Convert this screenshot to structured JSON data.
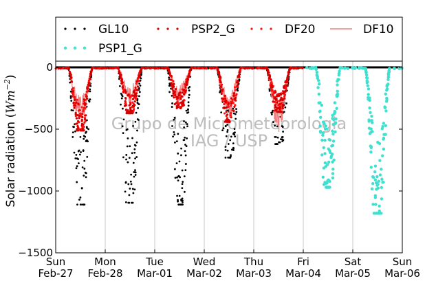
{
  "chart_data": {
    "type": "scatter",
    "title": "",
    "xlabel": "",
    "ylabel": "Solar radiation (Wm^-2)",
    "ylabel_parts": {
      "main": "Solar radiation (",
      "unit": "Wm",
      "sup": "−2",
      "close": ")"
    },
    "ylim": [
      -1500,
      50
    ],
    "yticks": [
      0,
      -500,
      -1000,
      -1500
    ],
    "ytick_labels": [
      "0",
      "−500",
      "−1000",
      "−1500"
    ],
    "xlim": [
      "2011-02-27",
      "2011-03-06"
    ],
    "xtick_days": [
      "Sun",
      "Mon",
      "Tue",
      "Wed",
      "Thu",
      "Fri",
      "Sat",
      "Sun"
    ],
    "xtick_dates": [
      "Feb-27",
      "Feb-28",
      "Mar-01",
      "Mar-02",
      "Mar-03",
      "Mar-04",
      "Mar-05",
      "Mar-06"
    ],
    "grid": "vertical",
    "legend_position": "top",
    "watermark_lines": [
      "Grupo de Micrometeorologia",
      "IAG / USP"
    ],
    "colors": {
      "GL10": "#000000",
      "PSP2_G": "#d40000",
      "DF20": "#ff1010",
      "DF10": "#f08080",
      "PSP1_G": "#40e0d0"
    },
    "series": [
      {
        "name": "GL10",
        "style": "dots",
        "days": [
          "Feb-27",
          "Feb-28",
          "Mar-01",
          "Mar-02",
          "Mar-03"
        ],
        "daily_min": [
          -1110,
          -1095,
          -1110,
          -730,
          -620
        ]
      },
      {
        "name": "PSP2_G",
        "style": "dots",
        "days": [
          "Feb-27",
          "Feb-28",
          "Mar-01",
          "Mar-02",
          "Mar-03"
        ],
        "daily_min": [
          -510,
          -370,
          -330,
          -440,
          -360
        ]
      },
      {
        "name": "DF20",
        "style": "dots",
        "days": [
          "Feb-27",
          "Feb-28",
          "Mar-01",
          "Mar-02",
          "Mar-03"
        ],
        "daily_min": [
          -500,
          -360,
          -320,
          -430,
          -350
        ]
      },
      {
        "name": "DF10",
        "style": "line",
        "days": [
          "Feb-27",
          "Feb-28",
          "Mar-01",
          "Mar-02",
          "Mar-03"
        ],
        "daily_min": [
          -500,
          -330,
          -300,
          -420,
          -550
        ]
      },
      {
        "name": "PSP1_G",
        "style": "dots",
        "days": [
          "Mar-04",
          "Mar-05"
        ],
        "daily_min": [
          -970,
          -1180
        ]
      }
    ]
  }
}
